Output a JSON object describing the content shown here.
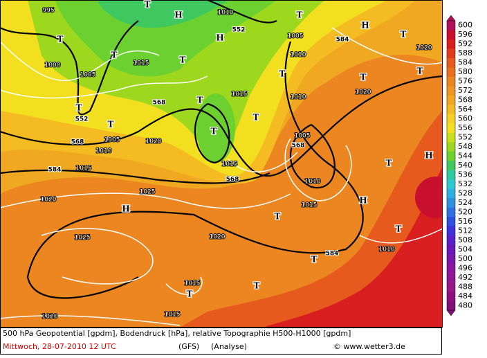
{
  "map": {
    "pressure_systems": [
      "T",
      "T",
      "T",
      "T",
      "T",
      "T",
      "T",
      "T",
      "T",
      "T",
      "T",
      "T",
      "T",
      "T",
      "T",
      "T",
      "T",
      "T",
      "T",
      "T",
      "H",
      "H",
      "H",
      "H",
      "H",
      "H"
    ],
    "contour_labels": [
      "552",
      "552",
      "568",
      "568",
      "568",
      "568",
      "584",
      "584",
      "584",
      "1010",
      "1010",
      "1010",
      "1010",
      "1010",
      "1010",
      "1015",
      "1015",
      "1015",
      "1015",
      "1015",
      "1015",
      "1015",
      "1020",
      "1020",
      "1020",
      "1020",
      "1020",
      "1020",
      "1025",
      "1025",
      "1000",
      "1005",
      "1005",
      "1005",
      "1005",
      "995"
    ]
  },
  "colorbar": {
    "ticks": [
      600,
      596,
      592,
      588,
      584,
      580,
      576,
      572,
      568,
      564,
      560,
      556,
      552,
      548,
      544,
      540,
      536,
      532,
      528,
      524,
      520,
      516,
      512,
      508,
      504,
      500,
      496,
      492,
      488,
      484,
      480
    ],
    "colors": [
      "#b0105a",
      "#c8102e",
      "#d81e1e",
      "#e03c1e",
      "#e65a1e",
      "#e8701e",
      "#ec8620",
      "#ee9622",
      "#f0a822",
      "#f4bc22",
      "#f6d024",
      "#f2e020",
      "#c8e01e",
      "#9ed81e",
      "#6cd030",
      "#40c860",
      "#30c8a0",
      "#30c8d0",
      "#30b0e0",
      "#3090e0",
      "#3070e0",
      "#3050e0",
      "#4030d8",
      "#5a20c8",
      "#6a18b8",
      "#7818a8",
      "#8818a0",
      "#901890",
      "#981888",
      "#901080",
      "#801078"
    ]
  },
  "caption": {
    "line1": "500 hPa Geopotential [gpdm], Bodendruck [hPa], relative Topographie H500-H1000 [gpdm]",
    "date": "Mittwoch, 28-07-2010  12 UTC",
    "model": "(GFS)",
    "run": "(Analyse)",
    "source": "© www.wetter3.de"
  }
}
